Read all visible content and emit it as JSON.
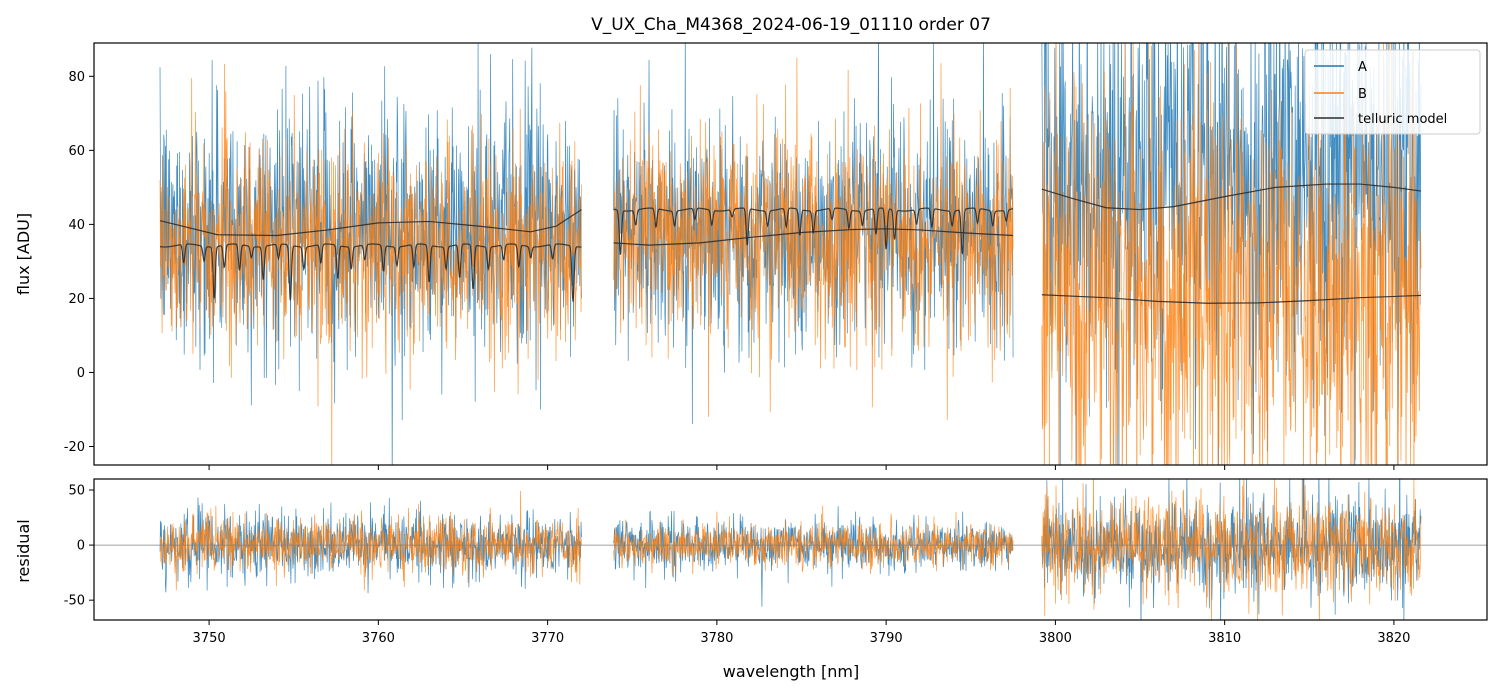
{
  "chart_data": {
    "type": "line",
    "title": "V_UX_Cha_M4368_2024-06-19_01110  order 07",
    "xlabel": "wavelength [nm]",
    "xlim": [
      3743.2,
      3825.5
    ],
    "xticks": [
      3750,
      3760,
      3770,
      3780,
      3790,
      3800,
      3810,
      3820
    ],
    "colors": {
      "A": "#1f77b4",
      "B": "#ff7f0e",
      "telluric": "#2b2b2b",
      "zero_line": "#808080"
    },
    "segments": [
      {
        "x_start": 3747.1,
        "x_end": 3772.0
      },
      {
        "x_start": 3773.9,
        "x_end": 3797.5
      },
      {
        "x_start": 3799.2,
        "x_end": 3821.6
      }
    ],
    "panels": [
      {
        "name": "flux",
        "ylabel": "flux [ADU]",
        "ylim": [
          -25,
          89
        ],
        "yticks": [
          -20,
          0,
          20,
          40,
          60,
          80
        ],
        "series": [
          {
            "name": "A",
            "segments": [
              {
                "mean": 38,
                "noise": 16
              },
              {
                "mean": 38,
                "noise": 15
              },
              {
                "mean": 52,
                "noise": 28
              }
            ]
          },
          {
            "name": "B",
            "segments": [
              {
                "mean": 34,
                "noise": 14
              },
              {
                "mean": 36,
                "noise": 14
              },
              {
                "mean": 20,
                "noise": 28
              }
            ]
          }
        ],
        "telluric_model": [
          {
            "segment": 0,
            "kind": "continuum",
            "points": [
              [
                3747.1,
                41
              ],
              [
                3750.5,
                37.2
              ],
              [
                3754,
                37
              ],
              [
                3757,
                38.5
              ],
              [
                3760,
                40.4
              ],
              [
                3763,
                40.8
              ],
              [
                3766,
                39.5
              ],
              [
                3769,
                38
              ],
              [
                3770.5,
                39.5
              ],
              [
                3772.0,
                44
              ]
            ]
          },
          {
            "segment": 0,
            "kind": "absorption",
            "continuum": 34.3,
            "lines": [
              [
                3748.5,
                5
              ],
              [
                3749.7,
                4
              ],
              [
                3750.3,
                14
              ],
              [
                3750.9,
                6
              ],
              [
                3751.8,
                7
              ],
              [
                3752.5,
                3
              ],
              [
                3753.2,
                9
              ],
              [
                3754.1,
                4
              ],
              [
                3754.8,
                15
              ],
              [
                3755.6,
                6
              ],
              [
                3756.6,
                5
              ],
              [
                3757.6,
                9
              ],
              [
                3758.4,
                6
              ],
              [
                3759.2,
                4
              ],
              [
                3760.3,
                7
              ],
              [
                3761.1,
                5
              ],
              [
                3762.1,
                6
              ],
              [
                3763.0,
                10
              ],
              [
                3764.0,
                6
              ],
              [
                3764.8,
                9
              ],
              [
                3765.6,
                12
              ],
              [
                3766.5,
                6
              ],
              [
                3767.4,
                4
              ],
              [
                3768.3,
                6
              ],
              [
                3769.0,
                3
              ],
              [
                3770.3,
                4
              ],
              [
                3771.5,
                15
              ]
            ]
          },
          {
            "segment": 1,
            "kind": "continuum",
            "points": [
              [
                3773.9,
                35
              ],
              [
                3776,
                34.4
              ],
              [
                3779,
                35
              ],
              [
                3782,
                36.5
              ],
              [
                3785,
                37.8
              ],
              [
                3788,
                38.6
              ],
              [
                3790,
                38.8
              ],
              [
                3792,
                38.5
              ],
              [
                3795,
                37.6
              ],
              [
                3797.5,
                37
              ]
            ]
          },
          {
            "segment": 1,
            "kind": "absorption",
            "continuum": 44.0,
            "lines": [
              [
                3774.3,
                12
              ],
              [
                3775.2,
                4
              ],
              [
                3776.4,
                5
              ],
              [
                3777.5,
                4
              ],
              [
                3778.7,
                3
              ],
              [
                3779.7,
                4
              ],
              [
                3780.9,
                2
              ],
              [
                3781.8,
                10
              ],
              [
                3783.0,
                4
              ],
              [
                3784.1,
                5
              ],
              [
                3784.9,
                7
              ],
              [
                3785.7,
                6
              ],
              [
                3786.8,
                3
              ],
              [
                3787.8,
                5
              ],
              [
                3788.6,
                4
              ],
              [
                3789.4,
                7
              ],
              [
                3790.0,
                11
              ],
              [
                3790.5,
                8
              ],
              [
                3791.8,
                4
              ],
              [
                3792.7,
                5
              ],
              [
                3793.9,
                4
              ],
              [
                3794.5,
                12
              ],
              [
                3795.4,
                4
              ],
              [
                3796.3,
                4
              ],
              [
                3797.1,
                3
              ]
            ]
          },
          {
            "segment": 2,
            "kind": "continuum",
            "points": [
              [
                3799.2,
                49.5
              ],
              [
                3801,
                47
              ],
              [
                3803,
                44.5
              ],
              [
                3805,
                44
              ],
              [
                3807,
                44.8
              ],
              [
                3810,
                47.5
              ],
              [
                3813,
                50
              ],
              [
                3816,
                50.9
              ],
              [
                3818,
                50.9
              ],
              [
                3820,
                50
              ],
              [
                3821.6,
                49
              ]
            ]
          },
          {
            "segment": 2,
            "kind": "continuum",
            "points": [
              [
                3799.2,
                21
              ],
              [
                3803,
                20.2
              ],
              [
                3806,
                19.2
              ],
              [
                3809,
                18.7
              ],
              [
                3812,
                18.8
              ],
              [
                3815,
                19.4
              ],
              [
                3818,
                20.2
              ],
              [
                3821.6,
                20.8
              ]
            ]
          }
        ]
      },
      {
        "name": "residual",
        "ylabel": "residual",
        "ylim": [
          -68,
          60
        ],
        "yticks": [
          -50,
          0,
          50
        ],
        "zero_line": 0,
        "series": [
          {
            "name": "A",
            "segments": [
              {
                "mean": 0,
                "noise": 14
              },
              {
                "mean": 0,
                "noise": 11
              },
              {
                "mean": 0,
                "noise": 22
              }
            ]
          },
          {
            "name": "B",
            "segments": [
              {
                "mean": 0,
                "noise": 12
              },
              {
                "mean": 0,
                "noise": 10
              },
              {
                "mean": 0,
                "noise": 22
              }
            ]
          }
        ]
      }
    ],
    "legend": {
      "placement": "top-right",
      "entries": [
        {
          "label": "A",
          "color": "#1f77b4"
        },
        {
          "label": "B",
          "color": "#ff7f0e"
        },
        {
          "label": "telluric model",
          "color": "#2b2b2b"
        }
      ]
    }
  }
}
